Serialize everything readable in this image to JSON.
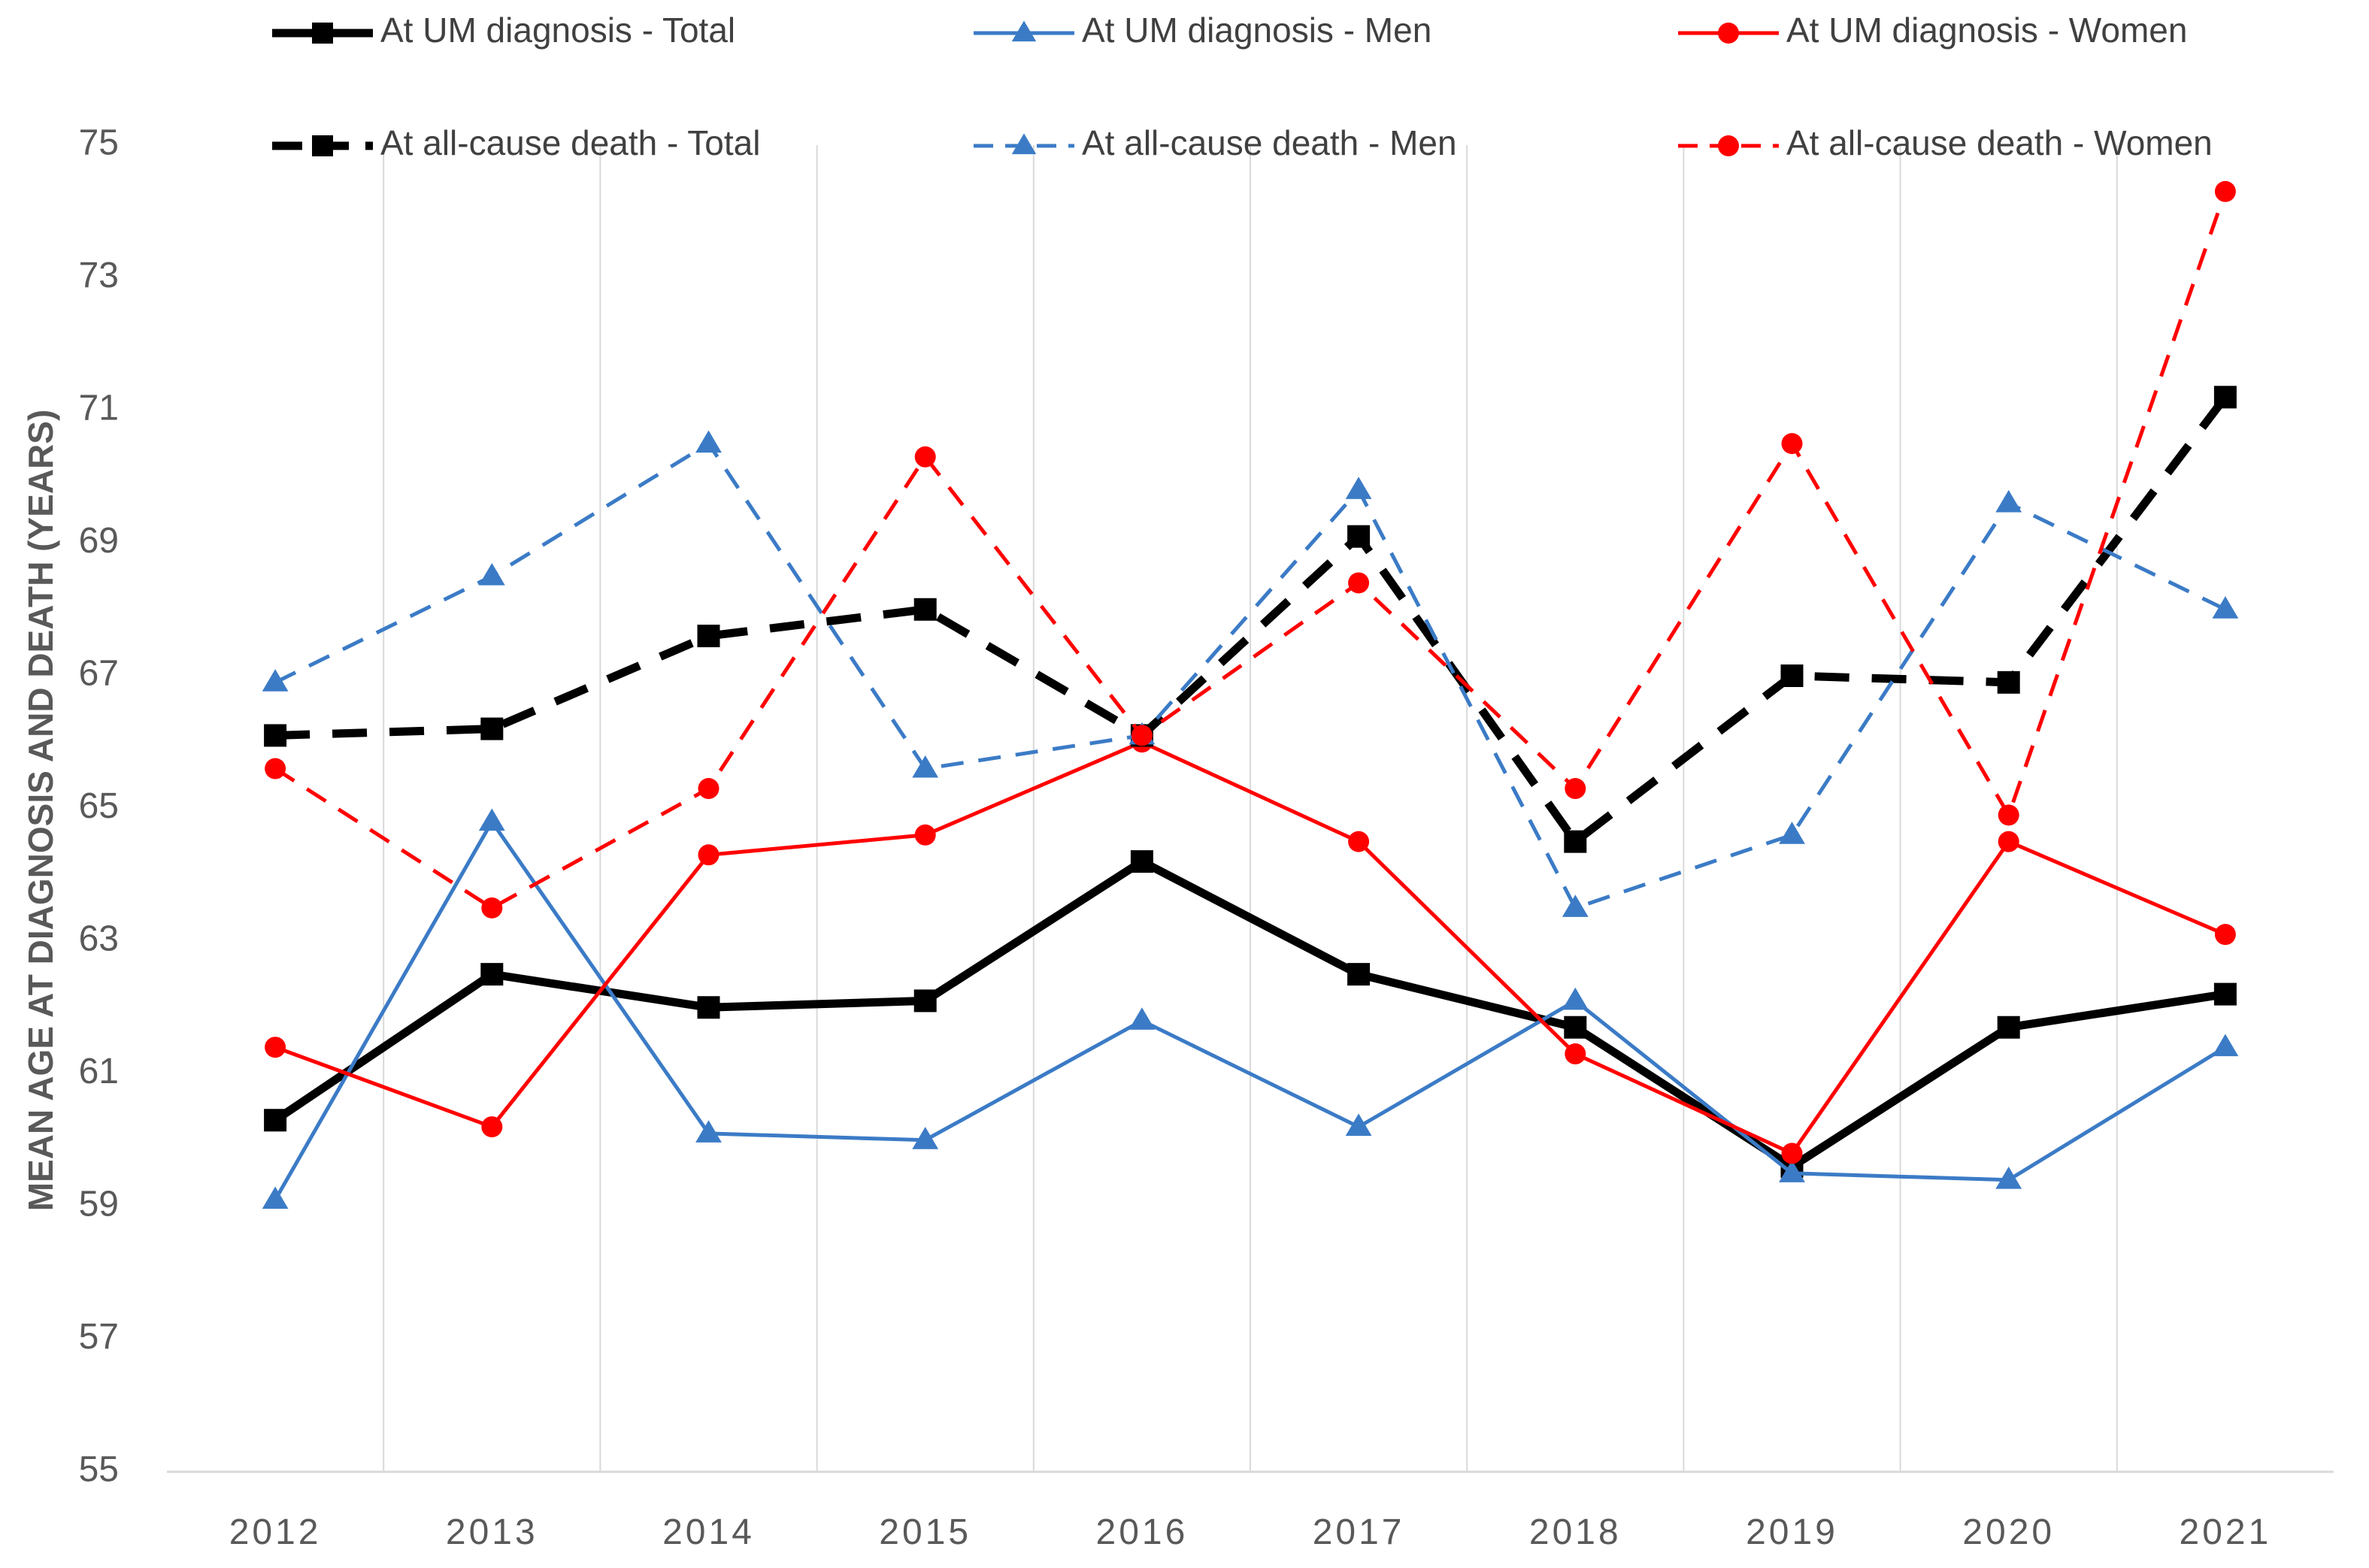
{
  "chart_data": {
    "type": "line",
    "title": "",
    "xlabel": "",
    "ylabel": "MEAN AGE AT DIAGNOSIS AND DEATH (YEARS)",
    "ylim": [
      55,
      75
    ],
    "yticks": [
      55,
      57,
      59,
      61,
      63,
      65,
      67,
      69,
      71,
      73,
      75
    ],
    "categories": [
      "2012",
      "2013",
      "2014",
      "2015",
      "2016",
      "2017",
      "2018",
      "2019",
      "2020",
      "2021"
    ],
    "grid": "vertical",
    "legend": "top",
    "series": [
      {
        "name": "At UM diagnosis - Total",
        "color": "#000000",
        "dash": "solid",
        "marker": "square",
        "width": "thick",
        "values": [
          60.3,
          62.5,
          62.0,
          62.1,
          64.2,
          62.5,
          61.7,
          59.6,
          61.7,
          62.2
        ]
      },
      {
        "name": "At UM diagnosis - Men",
        "color": "#3B7BC6",
        "dash": "solid",
        "marker": "triangle",
        "width": "thin",
        "values": [
          59.1,
          64.8,
          60.1,
          60.0,
          61.8,
          60.2,
          62.1,
          59.5,
          59.4,
          61.4
        ]
      },
      {
        "name": "At UM diagnosis - Women",
        "color": "#FF0000",
        "dash": "solid",
        "marker": "circle",
        "width": "thin",
        "values": [
          61.4,
          60.2,
          64.3,
          64.6,
          66.0,
          64.5,
          61.3,
          59.8,
          64.5,
          63.1
        ]
      },
      {
        "name": "At all-cause death - Total",
        "color": "#000000",
        "dash": "dashed",
        "marker": "square",
        "width": "thick",
        "values": [
          66.1,
          66.2,
          67.6,
          68.0,
          66.1,
          69.1,
          64.5,
          67.0,
          66.9,
          71.2
        ]
      },
      {
        "name": "At all-cause death - Men",
        "color": "#3B7BC6",
        "dash": "dashed",
        "marker": "triangle",
        "width": "thin",
        "values": [
          66.9,
          68.5,
          70.5,
          65.6,
          66.1,
          69.8,
          63.5,
          64.6,
          69.6,
          68.0
        ]
      },
      {
        "name": "At all-cause death - Women",
        "color": "#FF0000",
        "dash": "dashed",
        "marker": "circle",
        "width": "thin",
        "values": [
          65.6,
          63.5,
          65.3,
          70.3,
          66.1,
          68.4,
          65.3,
          70.5,
          64.9,
          74.3
        ]
      }
    ]
  }
}
